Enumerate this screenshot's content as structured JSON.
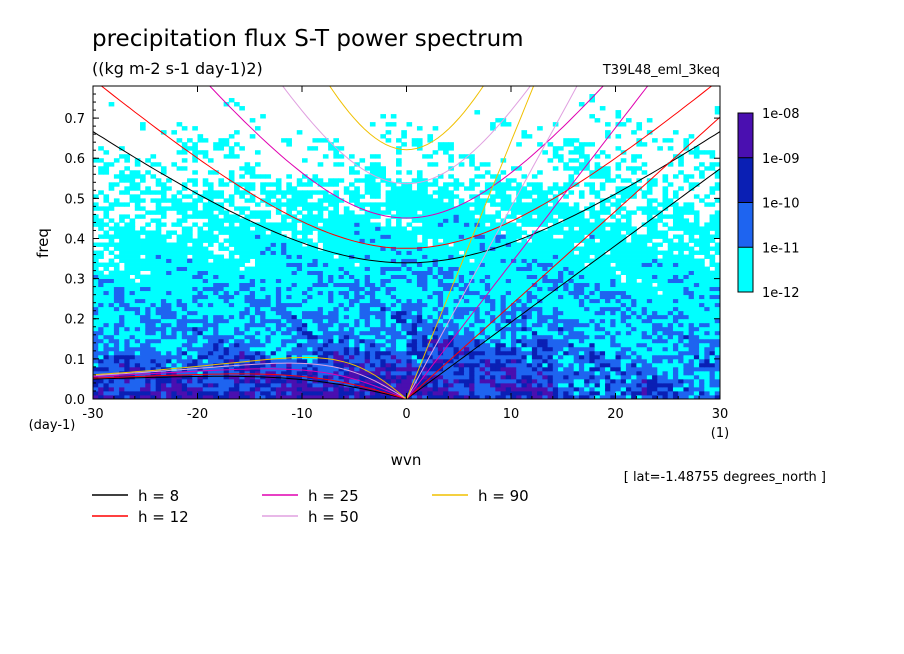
{
  "chart_data": {
    "type": "heatmap",
    "title": "precipitation flux S-T power spectrum",
    "subtitle": "((kg m-2 s-1 day-1)2)",
    "run_label": "T39L48_eml_3keq",
    "xlabel": "wvn",
    "xunit": "(1)",
    "ylabel": "freq",
    "yunit": "(day-1)",
    "xlim": [
      -30,
      30
    ],
    "ylim": [
      0,
      0.78
    ],
    "xticks": [
      -30,
      -20,
      -10,
      0,
      10,
      20,
      30
    ],
    "xtick_labels": [
      "-30",
      "-20",
      "-10",
      "0",
      "10",
      "20",
      "30"
    ],
    "yticks": [
      0.0,
      0.1,
      0.2,
      0.3,
      0.4,
      0.5,
      0.6,
      0.7
    ],
    "ytick_labels": [
      "0.0",
      "0.1",
      "0.2",
      "0.3",
      "0.4",
      "0.5",
      "0.6",
      "0.7"
    ],
    "colorbar": {
      "levels": [
        "1e-08",
        "1e-09",
        "1e-10",
        "1e-11",
        "1e-12"
      ],
      "colors": [
        "#4a0fb0",
        "#0a1fb4",
        "#1e64f0",
        "#00ffff"
      ]
    },
    "latitude_note": "[ lat=-1.48755 degrees_north ]",
    "dispersion_curves": [
      {
        "name": "h =  8",
        "h": 8,
        "color": "#000000"
      },
      {
        "name": "h = 12",
        "h": 12,
        "color": "#ff0000"
      },
      {
        "name": "h = 25",
        "h": 25,
        "color": "#e000b0"
      },
      {
        "name": "h = 50",
        "h": 50,
        "color": "#e0a0e0"
      },
      {
        "name": "h = 90",
        "h": 90,
        "color": "#f0c000"
      }
    ]
  }
}
